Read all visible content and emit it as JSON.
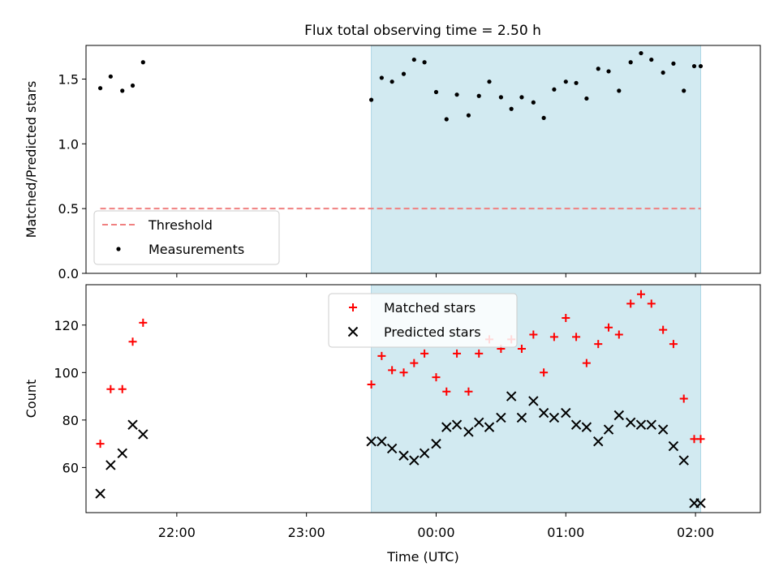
{
  "title": "Flux total observing time = 2.50 h",
  "colors": {
    "shade": "#add8e6",
    "threshold": "#f08080",
    "matched": "#ff0000",
    "predicted": "#000000",
    "measurement": "#000000"
  },
  "chart_data": [
    {
      "type": "scatter",
      "panel": "top",
      "ylabel": "Matched/Predicted stars",
      "ylim": [
        0,
        1.76
      ],
      "yticks": [
        0.0,
        0.5,
        1.0,
        1.5
      ],
      "ytick_labels": [
        "0.0",
        "0.5",
        "1.0",
        "1.5"
      ],
      "x_unit": "hours UTC",
      "xlim": [
        21.3,
        26.5
      ],
      "shaded_interval": [
        23.5,
        26.04
      ],
      "legend": {
        "position": "lower-left",
        "entries": [
          "Threshold",
          "Measurements"
        ]
      },
      "threshold": {
        "name": "Threshold",
        "y": 0.5,
        "x_range": [
          21.41,
          26.04
        ]
      },
      "series": [
        {
          "name": "Measurements",
          "x": [
            21.41,
            21.49,
            21.58,
            21.66,
            21.74,
            23.5,
            23.58,
            23.66,
            23.75,
            23.83,
            23.91,
            24.0,
            24.08,
            24.16,
            24.25,
            24.33,
            24.41,
            24.5,
            24.58,
            24.66,
            24.75,
            24.83,
            24.91,
            25.0,
            25.08,
            25.16,
            25.25,
            25.33,
            25.41,
            25.5,
            25.58,
            25.66,
            25.75,
            25.83,
            25.91,
            25.99,
            26.04
          ],
          "y": [
            1.43,
            1.52,
            1.41,
            1.45,
            1.63,
            1.34,
            1.51,
            1.48,
            1.54,
            1.65,
            1.63,
            1.4,
            1.19,
            1.38,
            1.22,
            1.37,
            1.48,
            1.36,
            1.27,
            1.36,
            1.32,
            1.2,
            1.42,
            1.48,
            1.47,
            1.35,
            1.58,
            1.56,
            1.41,
            1.63,
            1.7,
            1.65,
            1.55,
            1.62,
            1.41,
            1.6,
            1.6
          ]
        }
      ]
    },
    {
      "type": "scatter",
      "panel": "bottom",
      "ylabel": "Count",
      "xlabel": "Time (UTC)",
      "ylim": [
        41,
        137
      ],
      "yticks": [
        60,
        80,
        100,
        120
      ],
      "ytick_labels": [
        "60",
        "80",
        "100",
        "120"
      ],
      "x_unit": "hours UTC",
      "xlim": [
        21.3,
        26.5
      ],
      "xticks": [
        22,
        23,
        24,
        25,
        26
      ],
      "xtick_labels": [
        "22:00",
        "23:00",
        "00:00",
        "01:00",
        "02:00"
      ],
      "shaded_interval": [
        23.5,
        26.04
      ],
      "legend": {
        "position": "upper-center",
        "entries": [
          "Matched stars",
          "Predicted stars"
        ]
      },
      "series": [
        {
          "name": "Matched stars",
          "marker": "plus",
          "x": [
            21.41,
            21.49,
            21.58,
            21.66,
            21.74,
            23.5,
            23.58,
            23.66,
            23.75,
            23.83,
            23.91,
            24.0,
            24.08,
            24.16,
            24.25,
            24.33,
            24.41,
            24.5,
            24.58,
            24.66,
            24.75,
            24.83,
            24.91,
            25.0,
            25.08,
            25.16,
            25.25,
            25.33,
            25.41,
            25.5,
            25.58,
            25.66,
            25.75,
            25.83,
            25.91,
            25.99,
            26.04
          ],
          "y": [
            70,
            93,
            93,
            113,
            121,
            95,
            107,
            101,
            100,
            104,
            108,
            98,
            92,
            108,
            92,
            108,
            114,
            110,
            114,
            110,
            116,
            100,
            115,
            123,
            115,
            104,
            112,
            119,
            116,
            129,
            133,
            129,
            118,
            112,
            89,
            72,
            72
          ]
        },
        {
          "name": "Predicted stars",
          "marker": "x",
          "x": [
            21.41,
            21.49,
            21.58,
            21.66,
            21.74,
            23.5,
            23.58,
            23.66,
            23.75,
            23.83,
            23.91,
            24.0,
            24.08,
            24.16,
            24.25,
            24.33,
            24.41,
            24.5,
            24.58,
            24.66,
            24.75,
            24.83,
            24.91,
            25.0,
            25.08,
            25.16,
            25.25,
            25.33,
            25.41,
            25.5,
            25.58,
            25.66,
            25.75,
            25.83,
            25.91,
            25.99,
            26.04
          ],
          "y": [
            49,
            61,
            66,
            78,
            74,
            71,
            71,
            68,
            65,
            63,
            66,
            70,
            77,
            78,
            75,
            79,
            77,
            81,
            90,
            81,
            88,
            83,
            81,
            83,
            78,
            77,
            71,
            76,
            82,
            79,
            78,
            78,
            76,
            69,
            63,
            45,
            45
          ]
        }
      ]
    }
  ]
}
